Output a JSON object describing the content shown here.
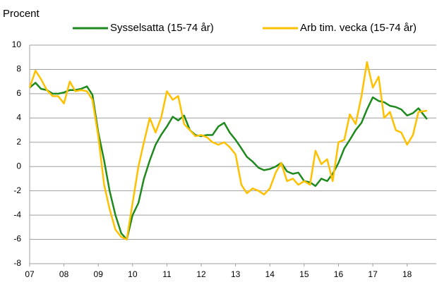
{
  "chart_data": {
    "type": "line",
    "y_label": "Procent",
    "x": [
      2007.0,
      2007.17,
      2007.33,
      2007.5,
      2007.67,
      2007.83,
      2008.0,
      2008.17,
      2008.33,
      2008.5,
      2008.67,
      2008.83,
      2009.0,
      2009.17,
      2009.33,
      2009.5,
      2009.67,
      2009.83,
      2010.0,
      2010.17,
      2010.33,
      2010.5,
      2010.67,
      2010.83,
      2011.0,
      2011.17,
      2011.33,
      2011.5,
      2011.67,
      2011.83,
      2012.0,
      2012.17,
      2012.33,
      2012.5,
      2012.67,
      2012.83,
      2013.0,
      2013.17,
      2013.33,
      2013.5,
      2013.67,
      2013.83,
      2014.0,
      2014.17,
      2014.33,
      2014.5,
      2014.67,
      2014.83,
      2015.0,
      2015.17,
      2015.33,
      2015.5,
      2015.67,
      2015.83,
      2016.0,
      2016.17,
      2016.33,
      2016.5,
      2016.67,
      2016.83,
      2017.0,
      2017.17,
      2017.33,
      2017.5,
      2017.67,
      2017.83,
      2018.0,
      2018.17,
      2018.33,
      2018.58
    ],
    "series": [
      {
        "name": "Sysselsatta (15-74 år)",
        "color": "#1e8a1e",
        "values": [
          6.5,
          6.9,
          6.4,
          6.3,
          6.0,
          6.0,
          6.1,
          6.3,
          6.3,
          6.4,
          6.6,
          5.9,
          2.8,
          0.5,
          -2.0,
          -4.0,
          -5.5,
          -6.0,
          -4.0,
          -3.0,
          -1.0,
          0.5,
          1.8,
          2.6,
          3.3,
          4.1,
          3.8,
          4.2,
          3.0,
          2.6,
          2.5,
          2.6,
          2.6,
          3.3,
          3.6,
          2.8,
          2.2,
          1.5,
          0.8,
          0.4,
          -0.1,
          -0.3,
          -0.2,
          0.0,
          0.3,
          -0.4,
          -0.6,
          -0.5,
          -1.2,
          -1.3,
          -1.6,
          -1.0,
          -1.2,
          -0.6,
          0.3,
          1.5,
          2.2,
          3.0,
          3.6,
          4.7,
          5.7,
          5.4,
          5.3,
          5.0,
          4.9,
          4.7,
          4.2,
          4.4,
          4.8,
          3.9
        ]
      },
      {
        "name": "Arb tim. vecka (15-74 år)",
        "color": "#ffc000",
        "values": [
          6.5,
          7.9,
          7.2,
          6.3,
          5.8,
          5.8,
          5.2,
          7.0,
          6.2,
          6.3,
          6.2,
          5.5,
          2.5,
          -1.5,
          -3.5,
          -5.2,
          -5.8,
          -6.0,
          -3.0,
          0.0,
          2.0,
          4.0,
          2.8,
          4.0,
          6.2,
          5.5,
          5.8,
          3.5,
          3.0,
          2.5,
          2.6,
          2.4,
          2.0,
          1.8,
          2.0,
          1.6,
          1.0,
          -1.5,
          -2.2,
          -1.8,
          -2.0,
          -2.3,
          -1.8,
          -0.5,
          0.3,
          -1.2,
          -1.0,
          -1.5,
          -1.2,
          -1.5,
          1.3,
          0.2,
          0.6,
          -1.2,
          2.0,
          2.2,
          4.3,
          3.5,
          5.8,
          8.6,
          6.5,
          7.4,
          4.0,
          4.5,
          3.0,
          2.8,
          1.8,
          2.6,
          4.5,
          4.6
        ]
      }
    ],
    "xlim": [
      2007,
      2018.85
    ],
    "xticks": [
      {
        "value": 2007,
        "label": "07"
      },
      {
        "value": 2008,
        "label": "08"
      },
      {
        "value": 2009,
        "label": "09"
      },
      {
        "value": 2010,
        "label": "10"
      },
      {
        "value": 2011,
        "label": "11"
      },
      {
        "value": 2012,
        "label": "12"
      },
      {
        "value": 2013,
        "label": "13"
      },
      {
        "value": 2014,
        "label": "14"
      },
      {
        "value": 2015,
        "label": "15"
      },
      {
        "value": 2016,
        "label": "16"
      },
      {
        "value": 2017,
        "label": "17"
      },
      {
        "value": 2018,
        "label": "18"
      }
    ],
    "ylim": [
      -8,
      10
    ],
    "yticks": [
      -8,
      -6,
      -4,
      -2,
      0,
      2,
      4,
      6,
      8,
      10
    ],
    "grid": true,
    "legend": "top"
  }
}
